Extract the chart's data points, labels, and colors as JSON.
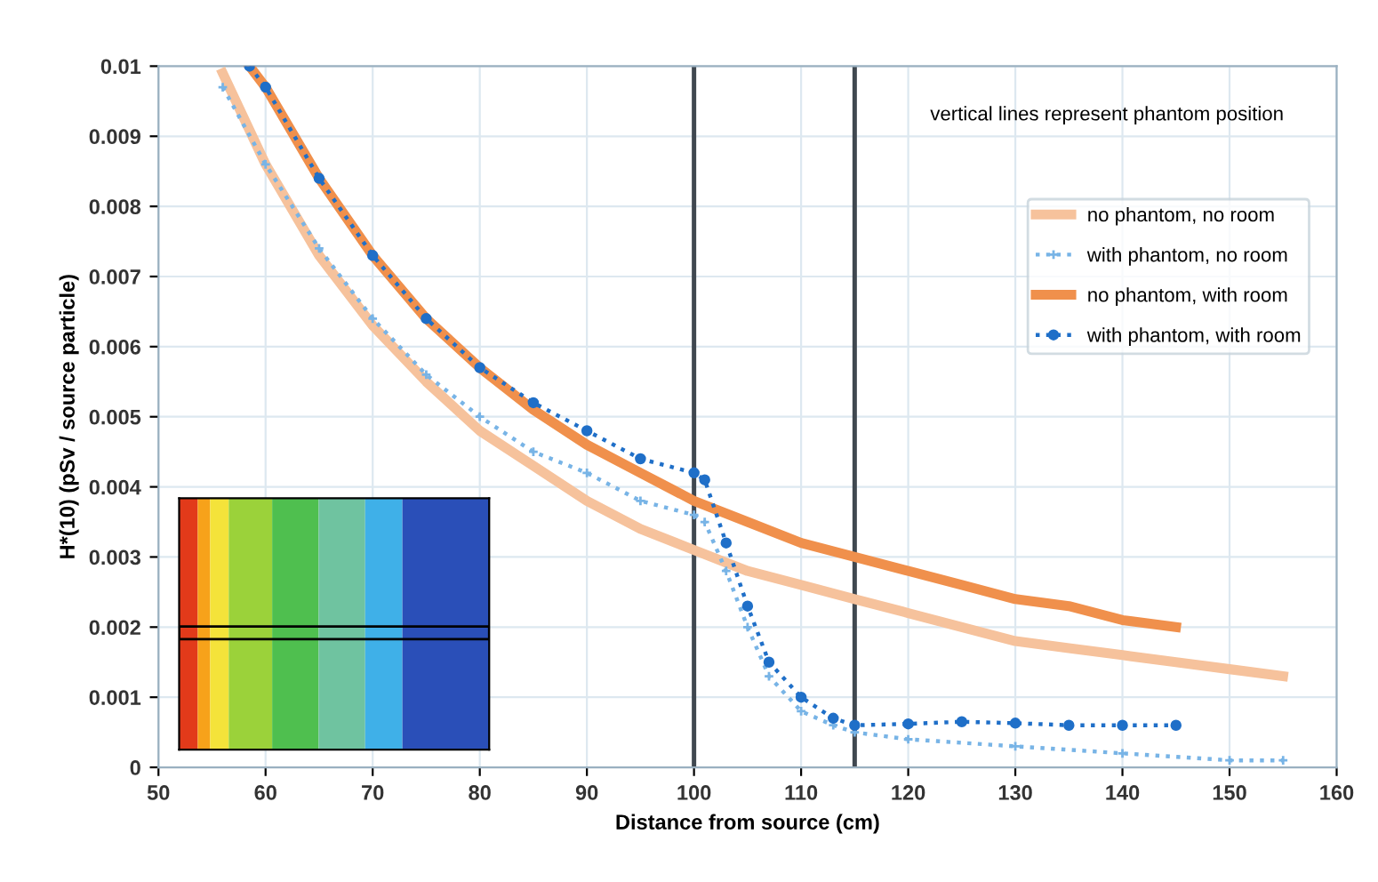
{
  "chart_data": {
    "type": "line",
    "xlabel": "Distance from source (cm)",
    "ylabel": "H*(10) (pSv / source particle)",
    "xlim": [
      50,
      160
    ],
    "xticks": [
      50,
      60,
      70,
      80,
      90,
      100,
      110,
      120,
      130,
      140,
      150,
      160
    ],
    "ylim": [
      0,
      0.01
    ],
    "yticks": [
      0,
      0.001,
      0.002,
      0.003,
      0.004,
      0.005,
      0.006,
      0.007,
      0.008,
      0.009,
      0.01
    ],
    "grid": true,
    "legend": "right",
    "annotations": [
      "vertical lines represent phantom position"
    ],
    "ref_lines": [
      {
        "axis": "x",
        "value": 100,
        "color": "#404850"
      },
      {
        "axis": "x",
        "value": 115,
        "color": "#404850"
      }
    ],
    "series": [
      {
        "name": "no phantom, no room",
        "color": "#f6c29c",
        "line_style": "solid",
        "marker": "none",
        "x": [
          56,
          60,
          65,
          70,
          75,
          80,
          85,
          90,
          95,
          100,
          105,
          110,
          115,
          120,
          125,
          130,
          135,
          140,
          145,
          150,
          155
        ],
        "values": [
          0.0099,
          0.0086,
          0.0073,
          0.0063,
          0.0055,
          0.0048,
          0.0043,
          0.0038,
          0.0034,
          0.0031,
          0.0028,
          0.0026,
          0.0024,
          0.0022,
          0.002,
          0.0018,
          0.0017,
          0.0016,
          0.0015,
          0.0014,
          0.0013
        ]
      },
      {
        "name": "with phantom, no room",
        "color": "#78b4e6",
        "line_style": "dotted",
        "marker": "cross",
        "x": [
          56,
          60,
          65,
          70,
          75,
          80,
          85,
          90,
          95,
          100,
          101,
          103,
          105,
          107,
          110,
          113,
          115,
          120,
          130,
          140,
          150,
          155
        ],
        "values": [
          0.0097,
          0.0086,
          0.0074,
          0.0064,
          0.0056,
          0.005,
          0.0045,
          0.0042,
          0.0038,
          0.0036,
          0.0035,
          0.0028,
          0.002,
          0.0013,
          0.0008,
          0.0006,
          0.0005,
          0.0004,
          0.0003,
          0.0002,
          0.0001,
          0.0001
        ]
      },
      {
        "name": "no phantom, with room",
        "color": "#f0904c",
        "line_style": "solid",
        "marker": "none",
        "x": [
          58.5,
          60,
          65,
          70,
          75,
          80,
          85,
          90,
          95,
          100,
          105,
          110,
          115,
          120,
          125,
          130,
          135,
          140,
          145
        ],
        "values": [
          0.01,
          0.0097,
          0.0084,
          0.0073,
          0.0064,
          0.0057,
          0.0051,
          0.0046,
          0.0042,
          0.0038,
          0.0035,
          0.0032,
          0.003,
          0.0028,
          0.0026,
          0.0024,
          0.0023,
          0.0021,
          0.002
        ]
      },
      {
        "name": "with phantom, with room",
        "color": "#1f6fc8",
        "line_style": "dotted",
        "marker": "circle",
        "x": [
          58.5,
          60,
          65,
          70,
          75,
          80,
          85,
          90,
          95,
          100,
          101,
          103,
          105,
          107,
          110,
          113,
          115,
          120,
          125,
          130,
          135,
          140,
          145
        ],
        "values": [
          0.01,
          0.0097,
          0.0084,
          0.0073,
          0.0064,
          0.0057,
          0.0052,
          0.0048,
          0.0044,
          0.0042,
          0.0041,
          0.0032,
          0.0023,
          0.0015,
          0.001,
          0.0007,
          0.0006,
          0.00062,
          0.00065,
          0.00063,
          0.0006,
          0.0006,
          0.0006
        ]
      }
    ]
  }
}
